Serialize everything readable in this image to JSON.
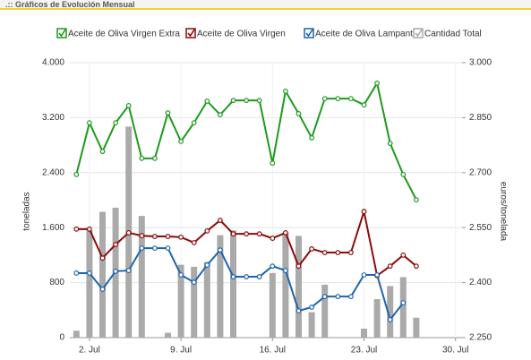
{
  "header": {
    "title": ".:: Gráficos de Evolución  Mensual"
  },
  "chart_data": {
    "type": "combo",
    "ylabel": "toneladas",
    "y2label": "euros/tonelada",
    "categories": [
      null,
      "2. Jul",
      null,
      null,
      null,
      null,
      null,
      null,
      "9. Jul",
      null,
      null,
      null,
      null,
      null,
      null,
      "16. Jul",
      null,
      null,
      null,
      null,
      null,
      null,
      "23. Jul",
      null,
      null,
      null,
      null,
      null,
      null,
      "30. Jul"
    ],
    "ylim": [
      0,
      4000
    ],
    "yticks": [
      0,
      800,
      {
        "value": 1600,
        "label": "1.600"
      },
      {
        "value": 2400,
        "label": "2.400"
      },
      {
        "value": 3200,
        "label": "3.200"
      },
      {
        "value": 4000,
        "label": "4.000"
      }
    ],
    "y2lim": [
      2250,
      3000
    ],
    "y2ticks": [
      {
        "value": 2250,
        "label": "2.250"
      },
      {
        "value": 2400,
        "label": "2.400"
      },
      {
        "value": 2550,
        "label": "2.550"
      },
      {
        "value": 2700,
        "label": "2.700"
      },
      {
        "value": 2850,
        "label": "2.850"
      },
      {
        "value": 3000,
        "label": "3.000"
      }
    ],
    "grid": true,
    "series": [
      {
        "name": "Aceite de Oliva Virgen Extra",
        "type": "line",
        "axis": "y2",
        "color": "#1d9a1d",
        "values": [
          2695,
          2836,
          2758,
          2836,
          2883,
          2739,
          2739,
          2863,
          2785,
          2836,
          2895,
          2858,
          2897,
          2897,
          2897,
          2726,
          2922,
          2861,
          2795,
          2902,
          2902,
          2902,
          2885,
          2944,
          2780,
          2695,
          2626,
          null,
          null,
          null
        ]
      },
      {
        "name": "Aceite de Oliva Virgen",
        "type": "line",
        "axis": "y2",
        "color": "#8b0a0a",
        "values": [
          2546,
          2546,
          2467,
          2504,
          2536,
          2528,
          2526,
          2526,
          2524,
          2509,
          2541,
          2570,
          2533,
          2533,
          2533,
          2521,
          2536,
          2445,
          2492,
          2482,
          2482,
          2482,
          2594,
          2419,
          2445,
          2475,
          2445,
          null,
          null,
          null
        ]
      },
      {
        "name": "Aceite de Oliva Lampante",
        "type": "line",
        "axis": "y2",
        "color": "#1f63b0",
        "values": [
          2426,
          2426,
          2382,
          2431,
          2433,
          2494,
          2494,
          2494,
          2421,
          2401,
          2448,
          2489,
          2416,
          2416,
          2416,
          2445,
          2433,
          2323,
          2333,
          2362,
          2362,
          2362,
          2421,
          2421,
          2299,
          2345,
          null,
          null,
          null,
          null
        ]
      },
      {
        "name": "Cantidad Total",
        "type": "bar",
        "axis": "y",
        "color": "#aaaaaa",
        "values": [
          100,
          1560,
          1830,
          1890,
          3070,
          1770,
          null,
          70,
          1060,
          1030,
          1100,
          1490,
          1560,
          null,
          null,
          940,
          1530,
          1480,
          370,
          770,
          null,
          null,
          130,
          560,
          750,
          880,
          290,
          null,
          null,
          null
        ]
      }
    ]
  }
}
